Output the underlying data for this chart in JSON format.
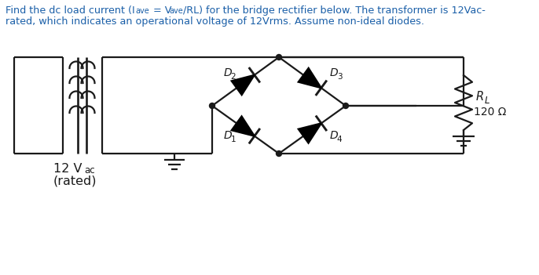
{
  "bg_color": "#ffffff",
  "line_color": "#1a1a1a",
  "text_color": "#1a1a1a",
  "title_color": "#1a5fa8",
  "label_color": "#1a1a1a",
  "lw": 1.6,
  "title_line1_main": "Find the dc load current (I",
  "title_line1_sub1": "ave",
  "title_line1_mid": " = V",
  "title_line1_sub2": "ave",
  "title_line1_end": "/RL) for the bridge rectifier below. The transformer is 12Vac-",
  "title_line2": "rated, which indicates an operational voltage of 12Vrms. Assume non-ideal diodes.",
  "label_12V": "12 V",
  "label_ac": "ac",
  "label_rated": "(rated)",
  "label_RL": "R",
  "label_Lsub": "L",
  "label_120": "120 Ω",
  "diode_labels": [
    "D",
    "D",
    "D",
    "D"
  ],
  "diode_subs": [
    "1",
    "2",
    "3",
    "4"
  ]
}
